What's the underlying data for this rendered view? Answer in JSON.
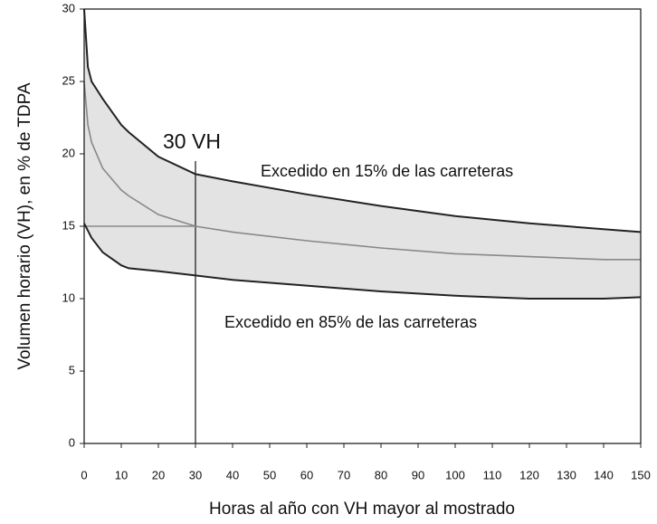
{
  "chart_data": {
    "type": "line",
    "xlabel": "Horas al año con VH mayor al mostrado",
    "ylabel": "Volumen horario (VH), en % de TDPA",
    "x": [
      0,
      1,
      2,
      5,
      10,
      12,
      20,
      30,
      40,
      60,
      80,
      100,
      120,
      140,
      150
    ],
    "series": [
      {
        "name": "Excedido en 15% de las carreteras",
        "color": "#222222",
        "values": [
          30,
          26,
          25,
          23.8,
          22,
          21.5,
          19.8,
          18.6,
          18.1,
          17.2,
          16.4,
          15.7,
          15.2,
          14.8,
          14.6
        ]
      },
      {
        "color": "#888888",
        "values": [
          25,
          22,
          20.8,
          19,
          17.5,
          17.1,
          15.8,
          15,
          14.6,
          14,
          13.5,
          13.1,
          12.9,
          12.7,
          12.7
        ]
      },
      {
        "name": "Excedido en 85% de las carreteras",
        "color": "#222222",
        "values": [
          15.2,
          14.7,
          14.2,
          13.2,
          12.3,
          12.1,
          11.9,
          11.6,
          11.3,
          10.9,
          10.5,
          10.2,
          10.0,
          10.0,
          10.1
        ]
      }
    ],
    "band_fill": "#e3e3e3",
    "annotation": "30 VH",
    "vline": {
      "x": 30,
      "ymax": 19.5
    },
    "hline": {
      "y": 15,
      "xmax": 30
    },
    "xlim": [
      0,
      150
    ],
    "xticks": [
      0,
      10,
      20,
      30,
      40,
      50,
      60,
      70,
      80,
      90,
      100,
      110,
      120,
      130,
      140,
      150
    ],
    "ylim": [
      0,
      30
    ],
    "yticks": [
      0,
      5,
      10,
      15,
      20,
      25,
      30
    ]
  }
}
